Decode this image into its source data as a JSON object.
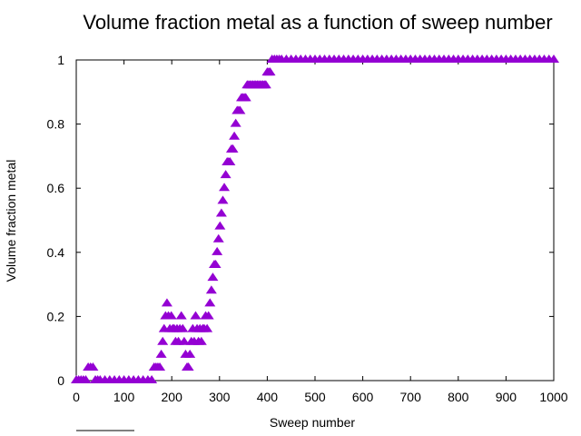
{
  "chart_data": {
    "type": "scatter",
    "title": "Volume fraction metal as a function of sweep number",
    "xlabel": "Sweep number",
    "ylabel": "Volume fraction metal",
    "xlim": [
      0,
      1000
    ],
    "ylim": [
      0,
      1
    ],
    "xticks": [
      0,
      100,
      200,
      300,
      400,
      500,
      600,
      700,
      800,
      900,
      1000
    ],
    "yticks": [
      0,
      0.2,
      0.4,
      0.6,
      0.8,
      1
    ],
    "xtick_labels": [
      "0",
      "100",
      "200",
      "300",
      "400",
      "500",
      "600",
      "700",
      "800",
      "900",
      "1000"
    ],
    "ytick_labels": [
      "0",
      "0.2",
      "0.4",
      "0.6",
      "0.8",
      "1"
    ],
    "grid": false,
    "marker": "triangle",
    "marker_color": "#9400d3",
    "series": [
      {
        "points": [
          [
            0,
            0
          ],
          [
            5,
            0
          ],
          [
            10,
            0
          ],
          [
            15,
            0
          ],
          [
            20,
            0
          ],
          [
            25,
            0.04
          ],
          [
            30,
            0.04
          ],
          [
            35,
            0.04
          ],
          [
            40,
            0
          ],
          [
            45,
            0
          ],
          [
            50,
            0
          ],
          [
            60,
            0
          ],
          [
            70,
            0
          ],
          [
            80,
            0
          ],
          [
            90,
            0
          ],
          [
            100,
            0
          ],
          [
            110,
            0
          ],
          [
            120,
            0
          ],
          [
            130,
            0
          ],
          [
            140,
            0
          ],
          [
            150,
            0
          ],
          [
            158,
            0
          ],
          [
            163,
            0.04
          ],
          [
            167,
            0.04
          ],
          [
            171,
            0.04
          ],
          [
            175,
            0.04
          ],
          [
            178,
            0.08
          ],
          [
            181,
            0.12
          ],
          [
            184,
            0.16
          ],
          [
            187,
            0.2
          ],
          [
            190,
            0.24
          ],
          [
            193,
            0.2
          ],
          [
            196,
            0.16
          ],
          [
            199,
            0.2
          ],
          [
            202,
            0.16
          ],
          [
            205,
            0.16
          ],
          [
            208,
            0.12
          ],
          [
            211,
            0.16
          ],
          [
            214,
            0.12
          ],
          [
            217,
            0.16
          ],
          [
            220,
            0.2
          ],
          [
            223,
            0.16
          ],
          [
            226,
            0.12
          ],
          [
            229,
            0.08
          ],
          [
            232,
            0.04
          ],
          [
            235,
            0.04
          ],
          [
            238,
            0.08
          ],
          [
            241,
            0.12
          ],
          [
            244,
            0.16
          ],
          [
            247,
            0.12
          ],
          [
            250,
            0.2
          ],
          [
            253,
            0.16
          ],
          [
            256,
            0.12
          ],
          [
            259,
            0.16
          ],
          [
            262,
            0.12
          ],
          [
            265,
            0.16
          ],
          [
            268,
            0.16
          ],
          [
            271,
            0.2
          ],
          [
            274,
            0.16
          ],
          [
            277,
            0.2
          ],
          [
            280,
            0.24
          ],
          [
            283,
            0.28
          ],
          [
            286,
            0.32
          ],
          [
            289,
            0.36
          ],
          [
            292,
            0.36
          ],
          [
            295,
            0.4
          ],
          [
            298,
            0.44
          ],
          [
            301,
            0.48
          ],
          [
            304,
            0.52
          ],
          [
            307,
            0.56
          ],
          [
            310,
            0.6
          ],
          [
            313,
            0.64
          ],
          [
            316,
            0.68
          ],
          [
            319,
            0.68
          ],
          [
            322,
            0.68
          ],
          [
            325,
            0.72
          ],
          [
            328,
            0.72
          ],
          [
            331,
            0.76
          ],
          [
            334,
            0.8
          ],
          [
            337,
            0.84
          ],
          [
            340,
            0.84
          ],
          [
            343,
            0.84
          ],
          [
            346,
            0.88
          ],
          [
            349,
            0.88
          ],
          [
            352,
            0.88
          ],
          [
            355,
            0.88
          ],
          [
            358,
            0.92
          ],
          [
            361,
            0.92
          ],
          [
            364,
            0.92
          ],
          [
            367,
            0.92
          ],
          [
            370,
            0.92
          ],
          [
            373,
            0.92
          ],
          [
            376,
            0.92
          ],
          [
            379,
            0.92
          ],
          [
            382,
            0.92
          ],
          [
            385,
            0.92
          ],
          [
            388,
            0.92
          ],
          [
            391,
            0.92
          ],
          [
            394,
            0.92
          ],
          [
            397,
            0.92
          ],
          [
            400,
            0.96
          ],
          [
            403,
            0.96
          ],
          [
            406,
            0.96
          ],
          [
            410,
            1
          ],
          [
            415,
            1
          ],
          [
            420,
            1
          ],
          [
            425,
            1
          ],
          [
            430,
            1
          ],
          [
            440,
            1
          ],
          [
            450,
            1
          ],
          [
            460,
            1
          ],
          [
            470,
            1
          ],
          [
            480,
            1
          ],
          [
            490,
            1
          ],
          [
            500,
            1
          ],
          [
            510,
            1
          ],
          [
            520,
            1
          ],
          [
            530,
            1
          ],
          [
            540,
            1
          ],
          [
            550,
            1
          ],
          [
            560,
            1
          ],
          [
            570,
            1
          ],
          [
            580,
            1
          ],
          [
            590,
            1
          ],
          [
            600,
            1
          ],
          [
            610,
            1
          ],
          [
            620,
            1
          ],
          [
            630,
            1
          ],
          [
            640,
            1
          ],
          [
            650,
            1
          ],
          [
            660,
            1
          ],
          [
            670,
            1
          ],
          [
            680,
            1
          ],
          [
            690,
            1
          ],
          [
            700,
            1
          ],
          [
            710,
            1
          ],
          [
            720,
            1
          ],
          [
            730,
            1
          ],
          [
            740,
            1
          ],
          [
            750,
            1
          ],
          [
            760,
            1
          ],
          [
            770,
            1
          ],
          [
            780,
            1
          ],
          [
            790,
            1
          ],
          [
            800,
            1
          ],
          [
            810,
            1
          ],
          [
            820,
            1
          ],
          [
            830,
            1
          ],
          [
            840,
            1
          ],
          [
            850,
            1
          ],
          [
            860,
            1
          ],
          [
            870,
            1
          ],
          [
            880,
            1
          ],
          [
            890,
            1
          ],
          [
            900,
            1
          ],
          [
            910,
            1
          ],
          [
            920,
            1
          ],
          [
            930,
            1
          ],
          [
            940,
            1
          ],
          [
            950,
            1
          ],
          [
            960,
            1
          ],
          [
            970,
            1
          ],
          [
            980,
            1
          ],
          [
            990,
            1
          ],
          [
            1000,
            1
          ]
        ]
      }
    ]
  }
}
